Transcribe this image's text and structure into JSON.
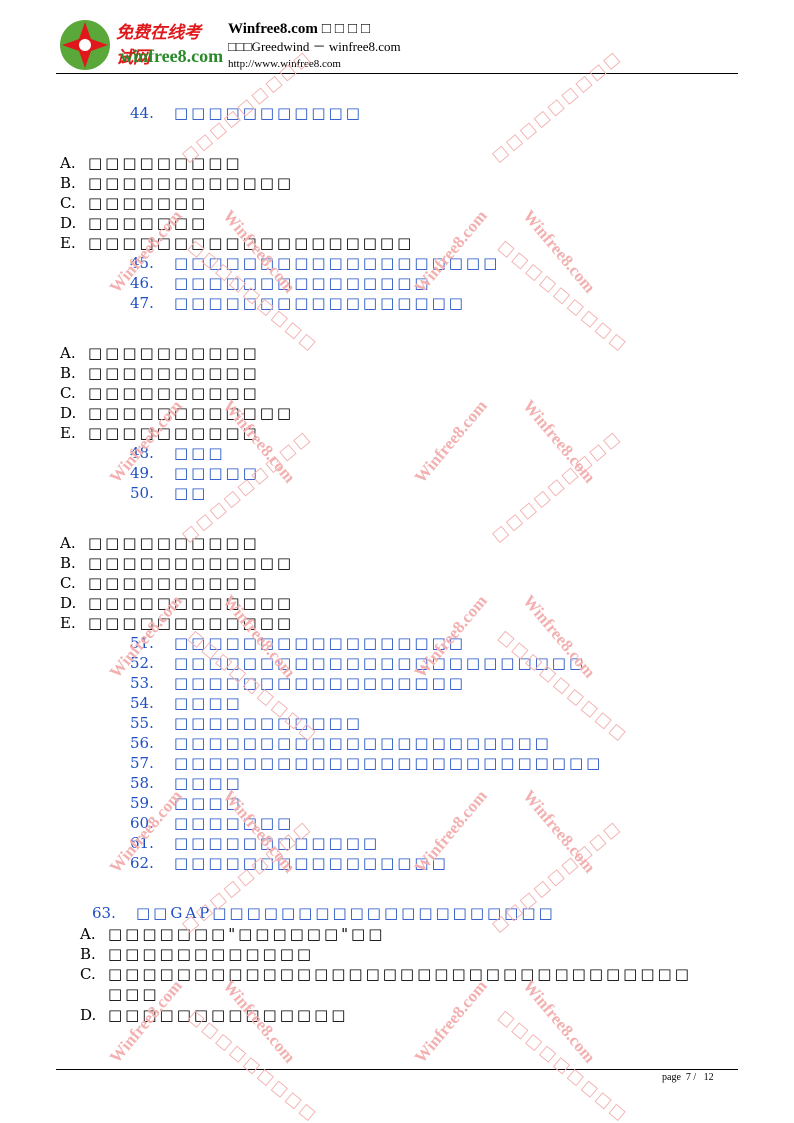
{
  "header": {
    "logo_cn": "免费在线考试网",
    "logo_en": "winfree8.com",
    "site": "Winfree8.com",
    "site_boxes": "□□□□",
    "line2": "□□□Greedwind － winfree8.com",
    "line3": "http://www.winfree8.com"
  },
  "watermark": {
    "text": "Winfree8.com",
    "color": "#f3b0b0"
  },
  "colors": {
    "question": "#1f4fc4",
    "option": "#000000"
  },
  "content": {
    "q44": {
      "num": "44.",
      "text": "□□□□□□□□□□□"
    },
    "g1": [
      {
        "letter": "A.",
        "text": "□□□□□□□□□"
      },
      {
        "letter": "B.",
        "text": "□□□□□□□□□□□□"
      },
      {
        "letter": "C.",
        "text": "□□□□□□□"
      },
      {
        "letter": "D.",
        "text": "□□□□□□□"
      },
      {
        "letter": "E.",
        "text": "□□□□□□□□□□□□□□□□□□□"
      }
    ],
    "q45_47": [
      {
        "num": "45.",
        "text": "□□□□□□□□□□□□□□□□□□□"
      },
      {
        "num": "46.",
        "text": "□□□□□□□□□□□□□□□"
      },
      {
        "num": "47.",
        "text": "□□□□□□□□□□□□□□□□□"
      }
    ],
    "g2": [
      {
        "letter": "A.",
        "text": "□□□□□□□□□□"
      },
      {
        "letter": "B.",
        "text": "□□□□□□□□□□"
      },
      {
        "letter": "C.",
        "text": "□□□□□□□□□□"
      },
      {
        "letter": "D.",
        "text": "□□□□□□□□□□□□"
      },
      {
        "letter": "E.",
        "text": "□□□□□□□□□□"
      }
    ],
    "q48_50": [
      {
        "num": "48.",
        "text": "□□□"
      },
      {
        "num": "49.",
        "text": "□□□□□"
      },
      {
        "num": "50.",
        "text": "□□"
      }
    ],
    "g3": [
      {
        "letter": "A.",
        "text": "□□□□□□□□□□"
      },
      {
        "letter": "B.",
        "text": "□□□□□□□□□□□□"
      },
      {
        "letter": "C.",
        "text": "□□□□□□□□□□"
      },
      {
        "letter": "D.",
        "text": "□□□□□□□□□□□□"
      },
      {
        "letter": "E.",
        "text": "□□□□□□□□□□□□"
      }
    ],
    "q51_62": [
      {
        "num": "51.",
        "text": "□□□□□□□□□□□□□□□□□"
      },
      {
        "num": "52.",
        "text": "□□□□□□□□□□□□□□□□□□□□□□□□"
      },
      {
        "num": "53.",
        "text": "□□□□□□□□□□□□□□□□□"
      },
      {
        "num": "54.",
        "text": "□□□□"
      },
      {
        "num": "55.",
        "text": "□□□□□□□□□□□"
      },
      {
        "num": "56.",
        "text": "□□□□□□□□□□□□□□□□□□□□□□"
      },
      {
        "num": "57.",
        "text": "□□□□□□□□□□□□□□□□□□□□□□□□□"
      },
      {
        "num": "58.",
        "text": "□□□□"
      },
      {
        "num": "59.",
        "text": "□□□□"
      },
      {
        "num": "60.",
        "text": "□□□□□□□"
      },
      {
        "num": "61.",
        "text": "□□□□□□□□□□□□"
      },
      {
        "num": "62.",
        "text": "□□□□□□□□□□□□□□□□"
      }
    ],
    "q63": {
      "num": "63.",
      "text": "□□GAP□□□□□□□□□□□□□□□□□□□□"
    },
    "g4": [
      {
        "letter": "A.",
        "text": "□□□□□□□\"□□□□□□\"□□"
      },
      {
        "letter": "B.",
        "text": "□□□□□□□□□□□□"
      },
      {
        "letter": "C.",
        "text": "□□□□□□□□□□□□□□□□□□□□□□□□□□□□□□□□□□"
      },
      {
        "letter": "",
        "text": "□□□"
      },
      {
        "letter": "D.",
        "text": "□□□□□□□□□□□□□□"
      }
    ]
  },
  "footer": {
    "label": "page",
    "current": "7",
    "sep": "/",
    "total": "12"
  }
}
